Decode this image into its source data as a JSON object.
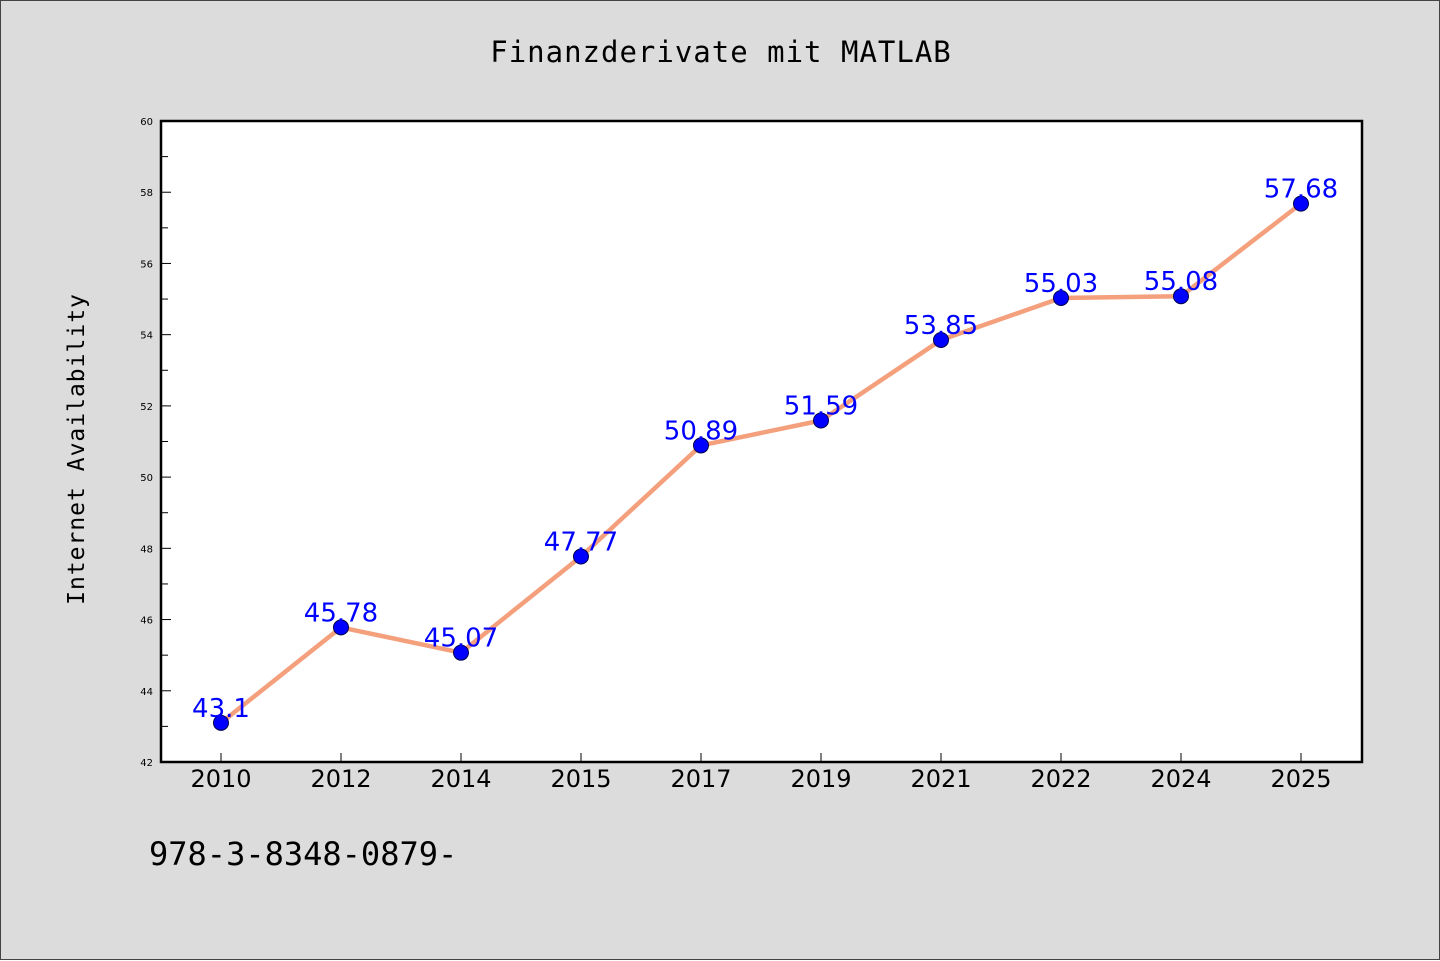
{
  "figure": {
    "background": "#dcdcdc",
    "footnote": "978-3-8348-0879-"
  },
  "chart_data": {
    "type": "line",
    "title": "Finanzderivate mit MATLAB",
    "xlabel": "",
    "ylabel": "Internet Availability",
    "categories": [
      "2010",
      "2012",
      "2014",
      "2015",
      "2017",
      "2019",
      "2021",
      "2022",
      "2024",
      "2025"
    ],
    "series": [
      {
        "values": [
          43.1,
          45.78,
          45.07,
          47.77,
          50.89,
          51.59,
          53.85,
          55.03,
          55.08,
          57.68
        ],
        "data_labels": [
          "43.1",
          "45.78",
          "45.07",
          "47.77",
          "50.89",
          "51.59",
          "53.85",
          "55.03",
          "55.08",
          "57.68"
        ],
        "line_color": "#f4a07c",
        "marker_color": "#0000ff",
        "label_color": "#0000ff"
      }
    ],
    "ylim": [
      42,
      60
    ],
    "yticks": [
      42,
      44,
      46,
      48,
      50,
      52,
      54,
      56,
      58,
      60
    ],
    "grid": false,
    "legend": "none",
    "plot_background": "#ffffff"
  }
}
